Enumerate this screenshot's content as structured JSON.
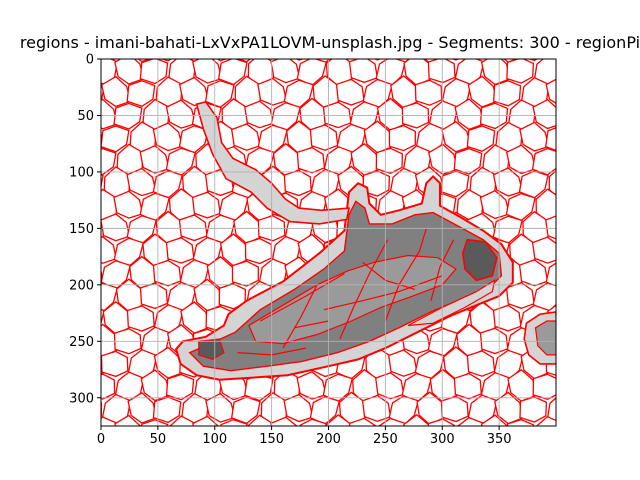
{
  "chart_data": {
    "type": "image",
    "title": "regions - imani-bahati-LxVxPA1LOVM-unsplash.jpg - Segments: 300 - regionPi",
    "xlabel": "",
    "ylabel": "",
    "xlim": [
      0,
      400
    ],
    "ylim": [
      325,
      0
    ],
    "x_ticks": [
      0,
      50,
      100,
      150,
      200,
      250,
      300,
      350
    ],
    "y_ticks": [
      0,
      50,
      100,
      150,
      200,
      250,
      300
    ],
    "grid": true,
    "colors": {
      "boundary": "#ff0000",
      "region_fill": "#ffffff",
      "object_light": "#d4d4d4",
      "object_mid": "#9a9a9a",
      "object_dark": "#808080",
      "object_darkest": "#5a5a5a",
      "grid": "#b0b0b0"
    }
  }
}
